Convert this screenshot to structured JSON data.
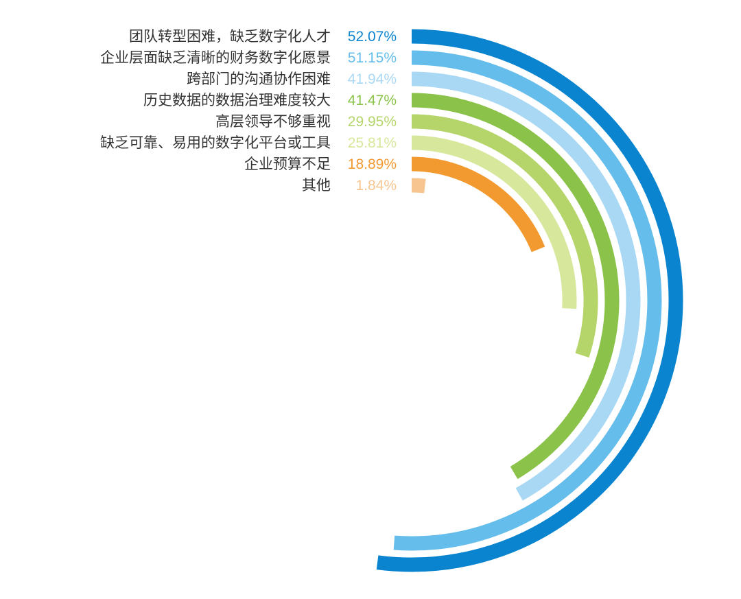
{
  "chart_data": {
    "type": "radial_bar",
    "title": "",
    "full_scale_percent": 100,
    "series": [
      {
        "category": "团队转型困难，缺乏数字化人才",
        "value": 52.07,
        "value_label": "52.07%",
        "color": "#0a84cf"
      },
      {
        "category": "企业层面缺乏清晰的财务数字化愿景",
        "value": 51.15,
        "value_label": "51.15%",
        "color": "#64bdea"
      },
      {
        "category": "跨部门的沟通协作困难",
        "value": 41.94,
        "value_label": "41.94%",
        "color": "#a9d8f5"
      },
      {
        "category": "历史数据的数据治理难度较大",
        "value": 41.47,
        "value_label": "41.47%",
        "color": "#8bc34a"
      },
      {
        "category": "高层领导不够重视",
        "value": 29.95,
        "value_label": "29.95%",
        "color": "#b5d56a"
      },
      {
        "category": "缺乏可靠、易用的数字化平台或工具",
        "value": 25.81,
        "value_label": "25.81%",
        "color": "#d7e79b"
      },
      {
        "category": "企业预算不足",
        "value": 18.89,
        "value_label": "18.89%",
        "color": "#f29a30"
      },
      {
        "category": "其他",
        "value": 1.84,
        "value_label": "1.84%",
        "color": "#f7c690"
      }
    ]
  }
}
